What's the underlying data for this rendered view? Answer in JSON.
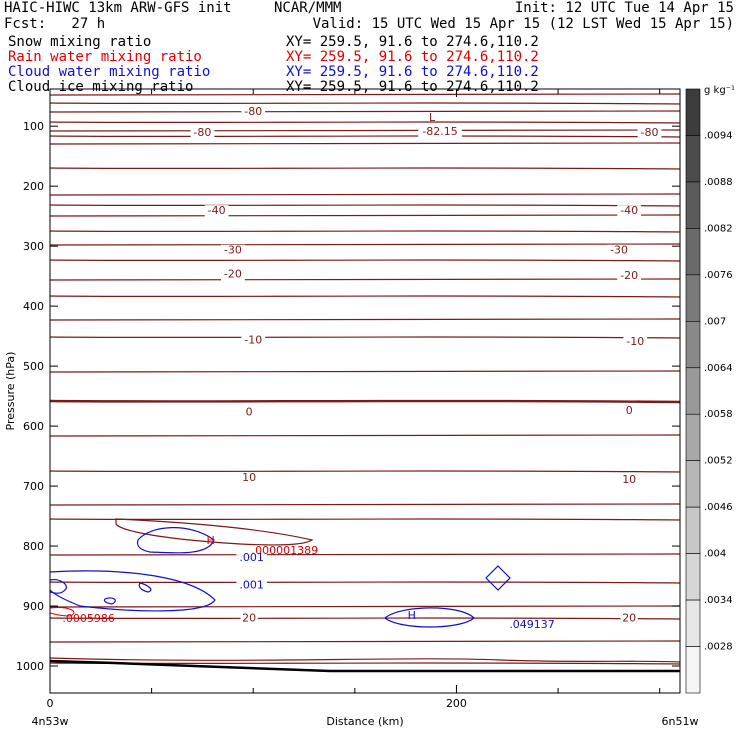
{
  "header": {
    "model": "HAIC-HIWC 13km ARW-GFS init",
    "org": "NCAR/MMM",
    "init": "Init: 12 UTC Tue 14 Apr 15",
    "fcst": "Fcst:   27 h",
    "valid": "Valid: 15 UTC Wed 15 Apr 15 (12 LST Wed 15 Apr 15)"
  },
  "fields": [
    {
      "name": "Snow mixing ratio",
      "xy": "XY= 259.5, 91.6 to 274.6,110.2",
      "color": "#000000"
    },
    {
      "name": "Rain water mixing ratio",
      "xy": "XY= 259.5, 91.6 to 274.6,110.2",
      "color": "#e00000"
    },
    {
      "name": "Cloud water mixing ratio",
      "xy": "XY= 259.5, 91.6 to 274.6,110.2",
      "color": "#1010d0"
    },
    {
      "name": "Cloud ice mixing ratio",
      "xy": "XY= 259.5, 91.6 to 274.6,110.2",
      "color": "#000000"
    }
  ],
  "chart_data": {
    "type": "contour-cross-section",
    "xlabel": "Distance (km)",
    "ylabel": "Pressure (hPa)",
    "xlim": [
      0,
      310
    ],
    "ylim": [
      1045,
      38
    ],
    "x_ticks": [
      0,
      200
    ],
    "x_minor_ticks": [
      50,
      100,
      150,
      250,
      300
    ],
    "y_ticks": [
      100,
      200,
      300,
      400,
      500,
      600,
      700,
      800,
      900,
      1000
    ],
    "x_endpoints": [
      "4n53w",
      "6n51w"
    ],
    "colorbar": {
      "unit": "g kg⁻¹",
      "levels": [
        ".0094",
        ".0088",
        ".0082",
        ".0076",
        ".007",
        ".0064",
        ".0058",
        ".0052",
        ".0046",
        ".004",
        ".0034",
        ".0028"
      ]
    },
    "temperature_contours": {
      "color": "#7a1a1a",
      "labels": [
        {
          "text": "-80",
          "x": 100,
          "p": 75
        },
        {
          "text": "-80",
          "x": 75,
          "p": 110
        },
        {
          "text": "-80",
          "x": 295,
          "p": 110
        },
        {
          "text": "-40",
          "x": 82,
          "p": 240
        },
        {
          "text": "-40",
          "x": 285,
          "p": 240
        },
        {
          "text": "-30",
          "x": 90,
          "p": 306
        },
        {
          "text": "-30",
          "x": 280,
          "p": 306
        },
        {
          "text": "-20",
          "x": 90,
          "p": 346
        },
        {
          "text": "-20",
          "x": 285,
          "p": 348
        },
        {
          "text": "-10",
          "x": 100,
          "p": 456
        },
        {
          "text": "-10",
          "x": 288,
          "p": 458
        },
        {
          "text": "0",
          "x": 98,
          "p": 576
        },
        {
          "text": "0",
          "x": 285,
          "p": 573
        },
        {
          "text": "10",
          "x": 98,
          "p": 685
        },
        {
          "text": "10",
          "x": 285,
          "p": 688
        },
        {
          "text": "20",
          "x": 98,
          "p": 919
        },
        {
          "text": "20",
          "x": 285,
          "p": 919
        }
      ],
      "min_label": {
        "marker": "L",
        "value": "-82.15",
        "x": 188,
        "p": 95
      }
    },
    "cloud_water": {
      "color": "#1010d0",
      "labels": [
        {
          "text": ".001",
          "x": 50,
          "p": 818
        },
        {
          "text": ".001",
          "x": 50,
          "p": 864
        },
        {
          "text": ".049137",
          "x": 188,
          "p": 930
        }
      ],
      "max_marker": {
        "marker": "H",
        "x": 178,
        "p": 915
      }
    },
    "rain_water": {
      "color": "#e00000",
      "labels": [
        {
          "text": ".000001389",
          "x": 50,
          "p": 807
        },
        {
          "text": ".0005986",
          "x": 12,
          "p": 920
        }
      ],
      "max_marker": {
        "marker": "H",
        "x": 52,
        "p": 790
      }
    }
  }
}
